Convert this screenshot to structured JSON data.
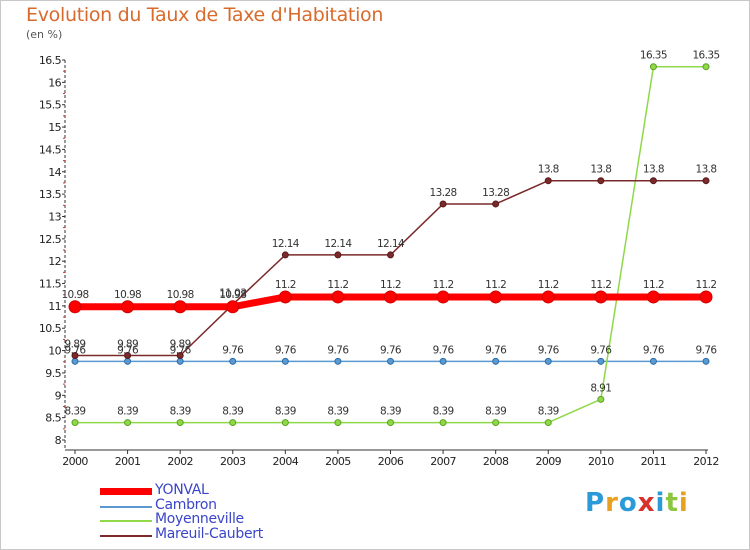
{
  "chart_data": {
    "type": "line",
    "title": "Evolution du Taux de Taxe d'Habitation",
    "subtitle": "(en %)",
    "x": [
      "2000",
      "2001",
      "2002",
      "2003",
      "2004",
      "2005",
      "2006",
      "2007",
      "2008",
      "2009",
      "2010",
      "2011",
      "2012"
    ],
    "ylim": [
      8,
      16.5
    ],
    "yticks": [
      "8",
      "8.5",
      "9",
      "9.5",
      "10",
      "10.5",
      "11",
      "11.5",
      "12",
      "12.5",
      "13",
      "13.5",
      "14",
      "14.5",
      "15",
      "15.5",
      "16",
      "16.5"
    ],
    "grid": false,
    "legend_position": "bottom-left",
    "series": [
      {
        "name": "YONVAL",
        "color": "#ff0000",
        "values": [
          10.98,
          10.98,
          10.98,
          10.98,
          11.2,
          11.2,
          11.2,
          11.2,
          11.2,
          11.2,
          11.2,
          11.2,
          11.2
        ],
        "labels": [
          "10.98",
          "10.98",
          "10.98",
          "10.98",
          "11.2",
          "11.2",
          "11.2",
          "11.2",
          "11.2",
          "11.2",
          "11.2",
          "11.2",
          "11.2"
        ]
      },
      {
        "name": "Cambron",
        "color": "#5a9ad0",
        "values": [
          9.76,
          9.76,
          9.76,
          9.76,
          9.76,
          9.76,
          9.76,
          9.76,
          9.76,
          9.76,
          9.76,
          9.76,
          9.76
        ],
        "labels": [
          "9.76",
          "9.76",
          "9.76",
          "9.76",
          "9.76",
          "9.76",
          "9.76",
          "9.76",
          "9.76",
          "9.76",
          "9.76",
          "9.76",
          "9.76"
        ]
      },
      {
        "name": "Moyenneville",
        "color": "#8fd848",
        "values": [
          8.39,
          8.39,
          8.39,
          8.39,
          8.39,
          8.39,
          8.39,
          8.39,
          8.39,
          8.39,
          8.91,
          16.35,
          16.35
        ],
        "labels": [
          "8.39",
          "8.39",
          "8.39",
          "8.39",
          "8.39",
          "8.39",
          "8.39",
          "8.39",
          "8.39",
          "8.39",
          "8.91",
          "16.35",
          "16.35"
        ]
      },
      {
        "name": "Mareuil-Caubert",
        "color": "#7a2a2a",
        "values": [
          9.89,
          9.89,
          9.89,
          11.03,
          12.14,
          12.14,
          12.14,
          13.28,
          13.28,
          13.8,
          13.8,
          13.8,
          13.8
        ],
        "labels": [
          "9.89",
          "9.89",
          "9.89",
          "11.03",
          "12.14",
          "12.14",
          "12.14",
          "13.28",
          "13.28",
          "13.8",
          "13.8",
          "13.8",
          "13.8"
        ]
      }
    ]
  },
  "branding": {
    "logo_text": "Proxiti"
  }
}
